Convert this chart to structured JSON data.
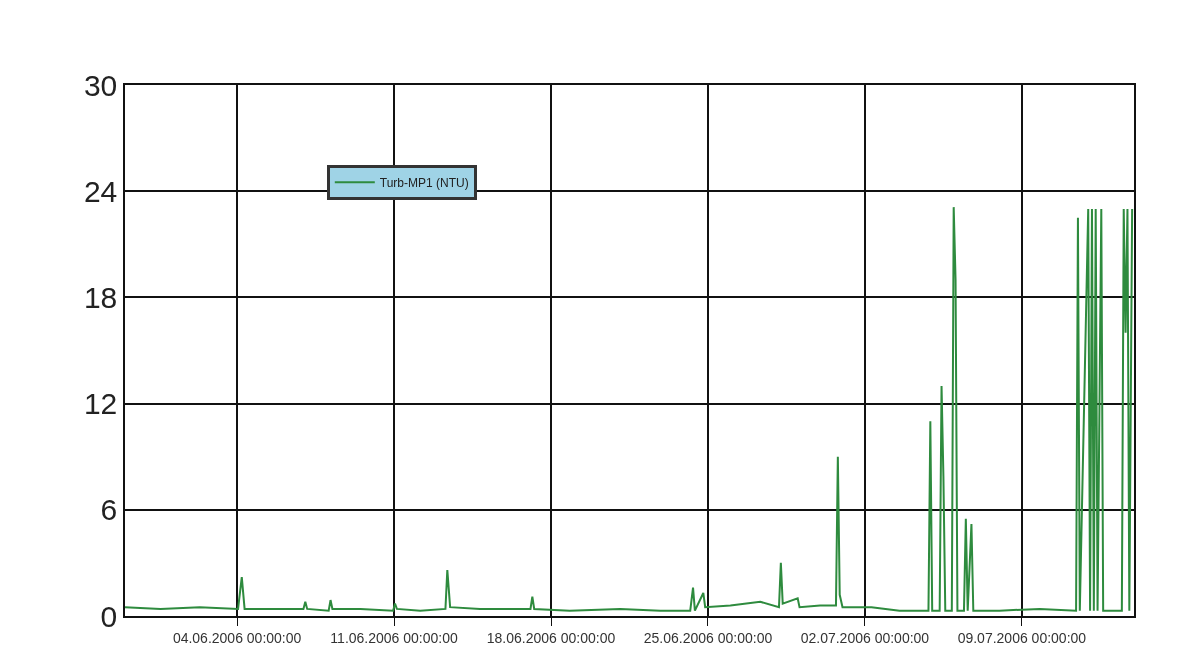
{
  "chart_data": {
    "type": "line",
    "legend": "top left",
    "grid": true,
    "marker": "none",
    "line_style": "solid",
    "xlim": [
      "2006-05-30T00:00",
      "2006-07-14T00:00"
    ],
    "xticks": [
      {
        "value": "2006-06-04",
        "label": "04.06.2006 00:00:00"
      },
      {
        "value": "2006-06-11",
        "label": "11.06.2006 00:00:00"
      },
      {
        "value": "2006-06-18",
        "label": "18.06.2006 00:00:00"
      },
      {
        "value": "2006-06-25",
        "label": "25.06.2006 00:00:00"
      },
      {
        "value": "2006-07-02",
        "label": "02.07.2006 00:00:00"
      },
      {
        "value": "2006-07-09",
        "label": "09.07.2006 00:00:00"
      }
    ],
    "ylim": [
      0,
      30
    ],
    "yticks": [
      0,
      6,
      12,
      18,
      24,
      30
    ],
    "x": [
      "2006-05-30T00:00",
      "2006-05-31T14:00",
      "2006-06-02T08:00",
      "2006-06-04T01:00",
      "2006-06-04T05:00",
      "2006-06-04T08:00",
      "2006-06-05T22:00",
      "2006-06-06T23:00",
      "2006-06-07T01:00",
      "2006-06-07T03:00",
      "2006-06-08T02:00",
      "2006-06-08T04:00",
      "2006-06-08T06:00",
      "2006-06-09T12:00",
      "2006-06-10T23:00",
      "2006-06-11T01:00",
      "2006-06-11T03:00",
      "2006-06-12T04:00",
      "2006-06-13T07:00",
      "2006-06-13T09:00",
      "2006-06-13T12:00",
      "2006-06-14T20:00",
      "2006-06-17T02:00",
      "2006-06-17T04:00",
      "2006-06-17T06:00",
      "2006-06-18T20:00",
      "2006-06-21T02:00",
      "2006-06-22T21:00",
      "2006-06-24T05:00",
      "2006-06-24T08:00",
      "2006-06-24T10:00",
      "2006-06-24T19:00",
      "2006-06-24T21:00",
      "2006-06-26T00:00",
      "2006-06-27T08:00",
      "2006-06-28T04:00",
      "2006-06-28T06:00",
      "2006-06-28T08:00",
      "2006-06-29T00:00",
      "2006-06-29T02:00",
      "2006-06-30T00:00",
      "2006-06-30T17:00",
      "2006-06-30T19:00",
      "2006-06-30T21:00",
      "2006-07-01T00:00",
      "2006-07-02T07:00",
      "2006-07-03T13:00",
      "2006-07-04T20:00",
      "2006-07-04T22:00",
      "2006-07-05T00:00",
      "2006-07-05T08:00",
      "2006-07-05T10:00",
      "2006-07-05T12:00",
      "2006-07-05T14:00",
      "2006-07-05T21:00",
      "2006-07-05T23:00",
      "2006-07-06T01:00",
      "2006-07-06T03:00",
      "2006-07-06T10:00",
      "2006-07-06T12:00",
      "2006-07-06T14:00",
      "2006-07-06T18:00",
      "2006-07-06T20:00",
      "2006-07-08T00:00",
      "2006-07-09T19:00",
      "2006-07-11T10:00",
      "2006-07-11T12:00",
      "2006-07-11T14:00",
      "2006-07-11T23:00",
      "2006-07-12T01:00",
      "2006-07-12T03:00",
      "2006-07-12T05:00",
      "2006-07-12T07:00",
      "2006-07-12T09:00",
      "2006-07-12T13:00",
      "2006-07-12T15:00",
      "2006-07-12T22:00",
      "2006-07-13T11:00",
      "2006-07-13T13:00",
      "2006-07-13T15:00",
      "2006-07-13T17:00",
      "2006-07-13T19:00",
      "2006-07-13T22:00"
    ],
    "series": [
      {
        "name": "Turb-MP1 (NTU)",
        "color": "#2e8b3e",
        "values": [
          0.5,
          0.4,
          0.5,
          0.4,
          2.2,
          0.4,
          0.4,
          0.4,
          0.8,
          0.4,
          0.3,
          0.9,
          0.4,
          0.4,
          0.3,
          0.7,
          0.4,
          0.3,
          0.4,
          2.6,
          0.5,
          0.4,
          0.4,
          1.1,
          0.4,
          0.3,
          0.4,
          0.3,
          0.3,
          1.6,
          0.3,
          1.3,
          0.5,
          0.6,
          0.8,
          0.5,
          3.0,
          0.7,
          1.0,
          0.5,
          0.6,
          0.6,
          9.0,
          1.2,
          0.5,
          0.5,
          0.3,
          0.3,
          11.0,
          0.3,
          0.3,
          13.0,
          7.9,
          0.3,
          0.3,
          23.1,
          19.0,
          0.3,
          0.3,
          5.5,
          0.3,
          5.2,
          0.3,
          0.3,
          0.4,
          0.3,
          22.5,
          0.3,
          23.0,
          0.3,
          23.0,
          0.3,
          23.0,
          0.3,
          23.0,
          0.3,
          0.3,
          0.3,
          23.0,
          16.0,
          23.0,
          0.3,
          23.0
        ]
      }
    ]
  }
}
